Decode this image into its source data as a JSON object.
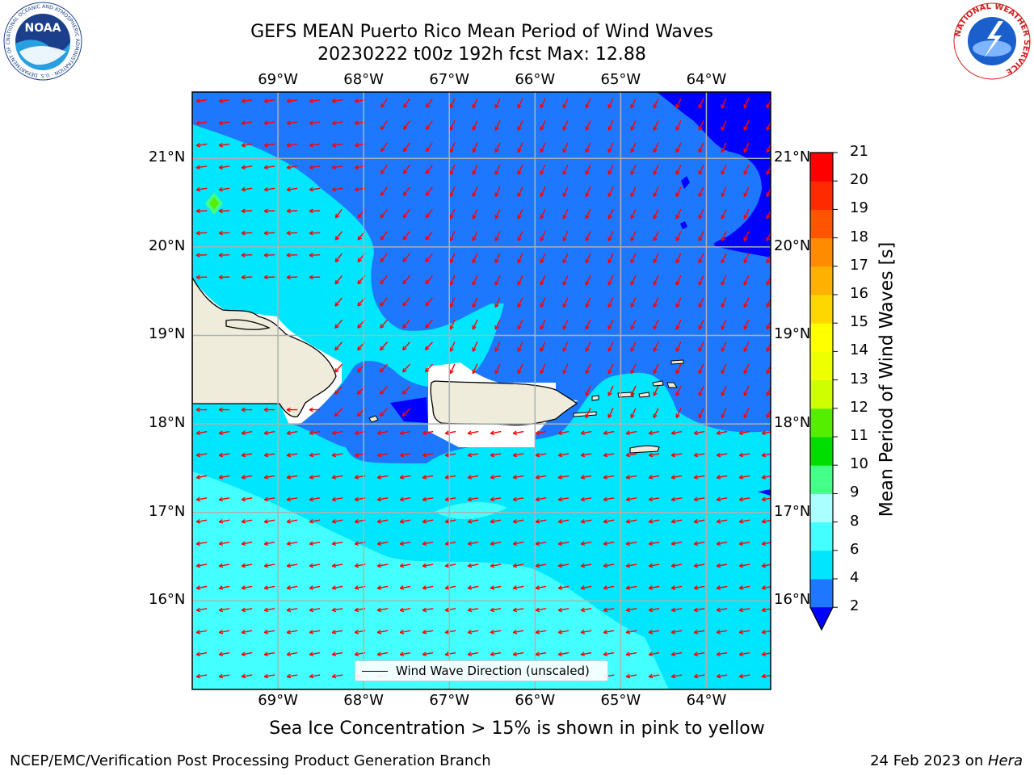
{
  "header": {
    "title_line1": "GEFS MEAN Puerto Rico Mean Period of Wind Waves",
    "title_line2": "20230222 t00z 192h fcst   Max: 12.88"
  },
  "map": {
    "lon_labels": [
      "69°W",
      "68°W",
      "67°W",
      "66°W",
      "65°W",
      "64°W"
    ],
    "lat_labels": [
      "21°N",
      "20°N",
      "19°N",
      "18°N",
      "17°N",
      "16°N"
    ],
    "lon_range": [
      -70.0,
      -63.25
    ],
    "lat_range": [
      15.0,
      21.75
    ],
    "land_color": "#efecdc",
    "arrow_color": "#ff0000",
    "grid_color": "#b0b0b0"
  },
  "colorbar": {
    "title": "Mean Period of Wind Waves [s]",
    "tick_labels": [
      "21",
      "20",
      "19",
      "18",
      "17",
      "16",
      "15",
      "14",
      "13",
      "12",
      "11",
      "10",
      "9",
      "8",
      "6",
      "4",
      "2"
    ],
    "levels": [
      0,
      2,
      4,
      6,
      8,
      9,
      10,
      11,
      12,
      13,
      14,
      15,
      16,
      17,
      18,
      19,
      20,
      21
    ],
    "colors": [
      "#0000ff",
      "#1e78ff",
      "#00e6ff",
      "#44ffff",
      "#aaffff",
      "#44ff88",
      "#00dd00",
      "#55ee00",
      "#ccff00",
      "#eeff00",
      "#ffff00",
      "#ffd700",
      "#ffb000",
      "#ff8c00",
      "#ff5500",
      "#ff2a00",
      "#ff0000"
    ]
  },
  "legend": {
    "label": "Wind Wave Direction (unscaled)"
  },
  "footnote": "Sea Ice Concentration > 15% is shown in pink to yellow",
  "credits": {
    "left": "NCEP/EMC/Verification Post Processing Product Generation Branch",
    "right_prefix": "24 Feb 2023 on ",
    "right_machine": "Hera"
  },
  "logos": {
    "noaa_text": "NOAA",
    "noaa_ring_text": "NATIONAL OCEANIC AND ATMOSPHERIC ADMINISTRATION · U.S. DEPARTMENT OF COMMERCE",
    "nws_ring_text": "NATIONAL WEATHER SERVICE"
  }
}
